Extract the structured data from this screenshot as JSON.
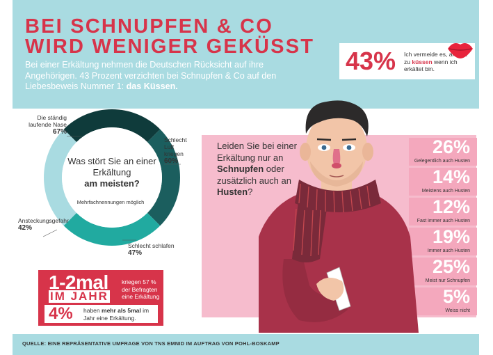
{
  "title": {
    "line1": "BEI SCHNUPFEN & CO",
    "line2": "WIRD WENIGER GEKÜSST"
  },
  "subtitle": {
    "text": "Bei einer Erkältung nehmen die Deutschen Rücksicht auf ihre Angehörigen. 43 Prozent verzichten bei Schnupfen & Co auf den Liebesbeweis Nummer 1:",
    "highlight": "das Küssen."
  },
  "kiss_stat": {
    "percent": "43%",
    "text_before": "Ich vermeide es, andere zu",
    "text_highlight": "küssen",
    "text_after": "wenn ich erkältet bin."
  },
  "donut": {
    "question_line1": "Was stört Sie an einer Erkältung",
    "question_bold": "am meisten?",
    "note": "Mehrfachnennungen möglich",
    "segments": [
      {
        "label": "Die ständig laufende Nase",
        "value": "67%",
        "color": "#0f3b3b"
      },
      {
        "label": "Schlecht Luft kriegen",
        "value": "60%",
        "color": "#1b5e5e"
      },
      {
        "label": "Schlecht schlafen",
        "value": "47%",
        "color": "#21aaa0"
      },
      {
        "label": "Ansteckungsgefahr",
        "value": "42%",
        "color": "#a9dbe1"
      }
    ]
  },
  "cough": {
    "question_pre": "Leiden Sie bei einer Erkältung nur an",
    "question_b1": "Schnupfen",
    "question_mid": "oder zusätzlich auch an",
    "question_b2": "Husten",
    "question_end": "?",
    "rows": [
      {
        "percent": "26%",
        "label": "Gelegentlich auch Husten"
      },
      {
        "percent": "14%",
        "label": "Meistens auch Husten"
      },
      {
        "percent": "12%",
        "label": "Fast immer auch Husten"
      },
      {
        "percent": "19%",
        "label": "Immer auch Husten"
      },
      {
        "percent": "25%",
        "label": "Meist nur Schnupfen"
      },
      {
        "percent": "5%",
        "label": "Weiss nicht"
      }
    ]
  },
  "frequency": {
    "main": "1-2mal",
    "sub": "IM JAHR",
    "text": "kriegen 57 % der Befragten eine Erkältung",
    "second_percent": "4%",
    "second_text_pre": "haben",
    "second_text_bold": "mehr als 5mal",
    "second_text_post": "im Jahr eine Erkältung."
  },
  "source": "QUELLE: EINE REPRÄSENTATIVE UMFRAGE VON TNS EMNID IM AUFTRAG VON POHL-BOSKAMP",
  "colors": {
    "red": "#d7344a",
    "light_blue": "#a9dbe1",
    "pink": "#f6bccd",
    "pink_dark": "#f4a8bd",
    "sweater": "#a8324a",
    "scarf": "#7a2a3a"
  }
}
